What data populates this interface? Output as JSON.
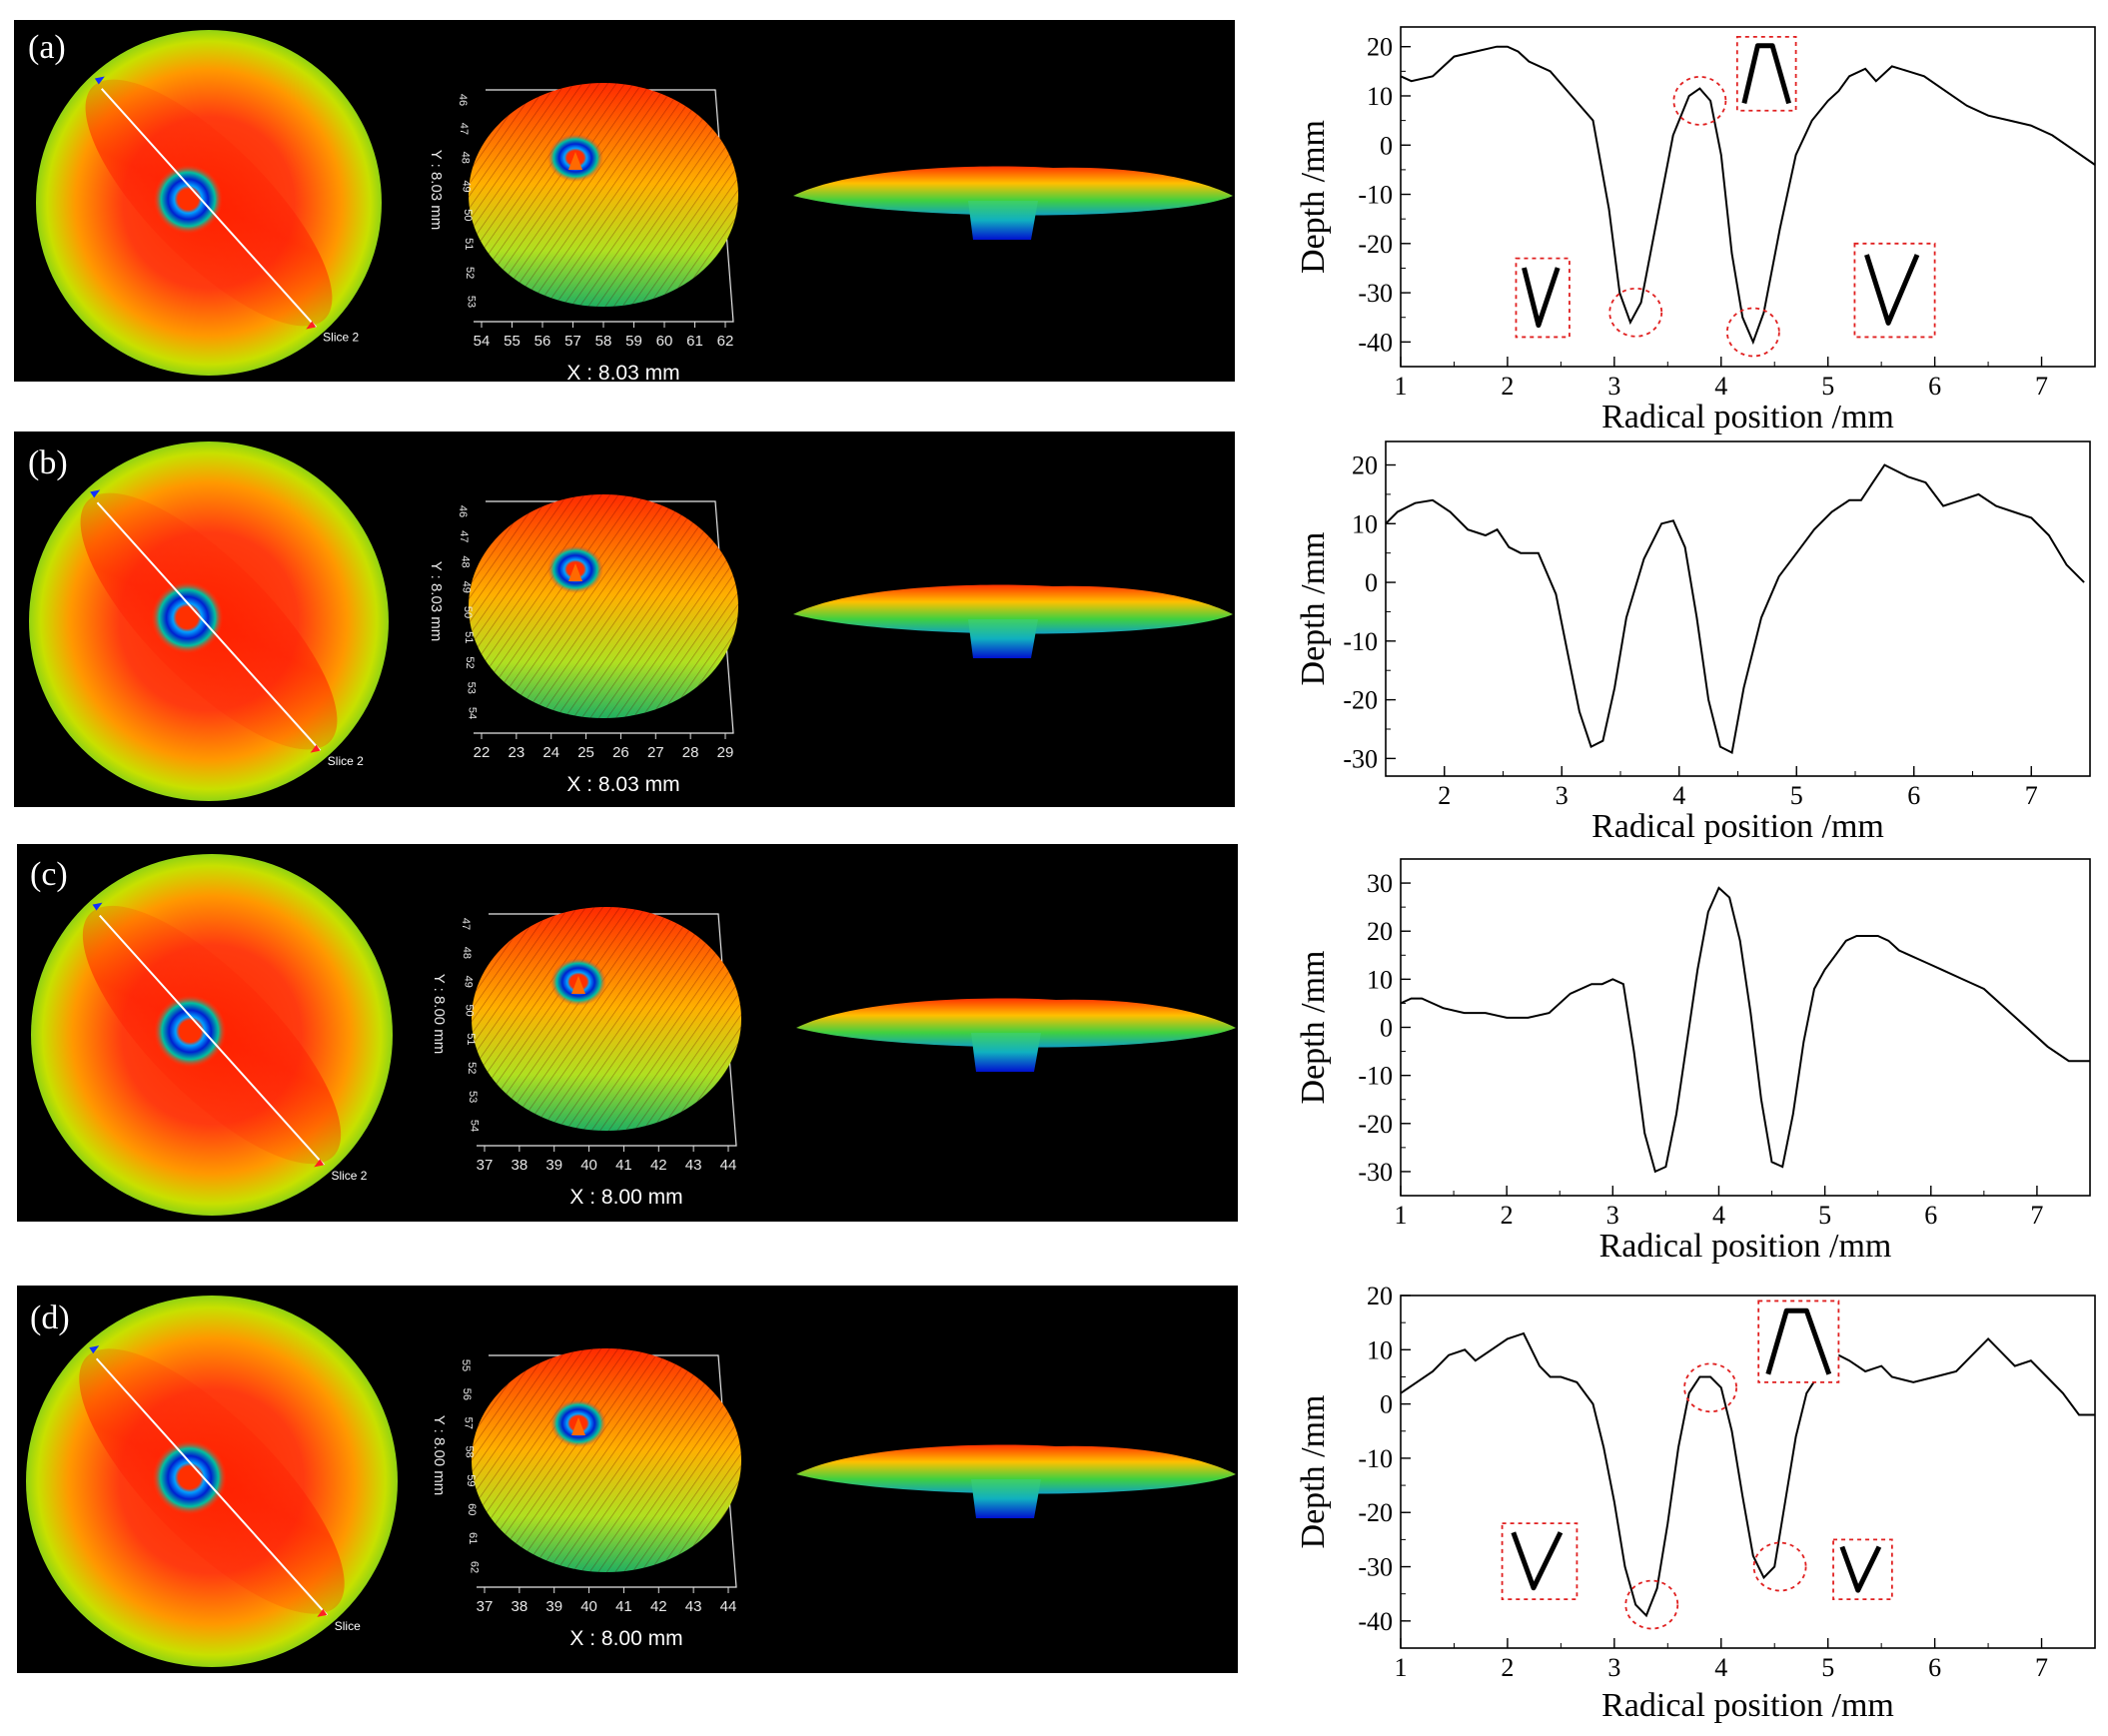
{
  "figure": {
    "panel_labels": [
      "(a)",
      "(b)",
      "(c)",
      "(d)"
    ],
    "colors": {
      "line": "#000000",
      "highlight": "#e02020",
      "scan_bg": "#000000"
    }
  },
  "scans": [
    {
      "x_ticks": [
        "54",
        "55",
        "56",
        "57",
        "58",
        "59",
        "60",
        "61",
        "62"
      ],
      "y_ticks": [
        "46",
        "47",
        "48",
        "49",
        "50",
        "51",
        "52",
        "53"
      ],
      "y_label": "Y : 8.03 mm",
      "x_label": "X : 8.03 mm",
      "slice_label": "Slice 2"
    },
    {
      "x_ticks": [
        "22",
        "23",
        "24",
        "25",
        "26",
        "27",
        "28",
        "29"
      ],
      "y_ticks": [
        "46",
        "47",
        "48",
        "49",
        "50",
        "51",
        "52",
        "53",
        "54"
      ],
      "y_label": "Y : 8.03 mm",
      "x_label": "X : 8.03 mm",
      "slice_label": "Slice 2"
    },
    {
      "x_ticks": [
        "37",
        "38",
        "39",
        "40",
        "41",
        "42",
        "43",
        "44"
      ],
      "y_ticks": [
        "47",
        "48",
        "49",
        "50",
        "51",
        "52",
        "53",
        "54"
      ],
      "y_label": "Y : 8.00 mm",
      "x_label": "X : 8.00 mm",
      "slice_label": "Slice 2"
    },
    {
      "x_ticks": [
        "37",
        "38",
        "39",
        "40",
        "41",
        "42",
        "43",
        "44"
      ],
      "y_ticks": [
        "55",
        "56",
        "57",
        "58",
        "59",
        "60",
        "61",
        "62"
      ],
      "y_label": "Y : 8.00 mm",
      "x_label": "X : 8.00 mm",
      "slice_label": "Slice"
    }
  ],
  "chart_data": [
    {
      "type": "line",
      "panel": "(a)",
      "xlabel": "Radical position /mm",
      "ylabel": "Depth /mm",
      "xlim": [
        1,
        7.5
      ],
      "ylim": [
        -45,
        24
      ],
      "xticks": [
        1,
        2,
        3,
        4,
        5,
        6,
        7
      ],
      "yticks": [
        20,
        10,
        0,
        -10,
        -20,
        -30,
        -40
      ],
      "x": [
        1.0,
        1.1,
        1.3,
        1.5,
        1.7,
        1.9,
        2.0,
        2.1,
        2.2,
        2.4,
        2.6,
        2.8,
        2.95,
        3.05,
        3.15,
        3.25,
        3.4,
        3.55,
        3.7,
        3.8,
        3.9,
        4.0,
        4.1,
        4.2,
        4.3,
        4.4,
        4.55,
        4.7,
        4.85,
        5.0,
        5.1,
        5.2,
        5.35,
        5.45,
        5.6,
        5.75,
        5.9,
        6.1,
        6.3,
        6.5,
        6.7,
        6.9,
        7.1,
        7.3,
        7.5
      ],
      "y": [
        14,
        13,
        14,
        18,
        19,
        20,
        20,
        19,
        17,
        15,
        10,
        5,
        -13,
        -30,
        -36,
        -32,
        -15,
        2,
        10,
        11.5,
        9,
        -2,
        -22,
        -35,
        -40,
        -34,
        -17,
        -2,
        5,
        9,
        11,
        14,
        15.5,
        13,
        16,
        15,
        14,
        11,
        8,
        6,
        5,
        4,
        2,
        -1,
        -4
      ],
      "annotations": [
        {
          "kind": "circle",
          "x": 3.2,
          "y": -34
        },
        {
          "kind": "circle",
          "x": 3.8,
          "y": 9
        },
        {
          "kind": "circle",
          "x": 4.3,
          "y": -38
        },
        {
          "kind": "inset",
          "shape": "v",
          "x0": 2.08,
          "x1": 2.58,
          "y0": -23,
          "y1": -39
        },
        {
          "kind": "inset",
          "shape": "peak",
          "x0": 4.15,
          "x1": 4.7,
          "y0": 22,
          "y1": 7
        },
        {
          "kind": "inset",
          "shape": "v",
          "x0": 5.25,
          "x1": 6.0,
          "y0": -20,
          "y1": -39
        }
      ]
    },
    {
      "type": "line",
      "panel": "(b)",
      "xlabel": "Radical position /mm",
      "ylabel": "Depth /mm",
      "xlim": [
        1.5,
        7.5
      ],
      "ylim": [
        -33,
        24
      ],
      "xticks": [
        2,
        3,
        4,
        5,
        6,
        7
      ],
      "yticks": [
        20,
        10,
        0,
        -10,
        -20,
        -30
      ],
      "x": [
        1.5,
        1.6,
        1.75,
        1.9,
        2.05,
        2.2,
        2.35,
        2.45,
        2.55,
        2.65,
        2.8,
        2.95,
        3.05,
        3.15,
        3.25,
        3.35,
        3.45,
        3.55,
        3.7,
        3.85,
        3.95,
        4.05,
        4.15,
        4.25,
        4.35,
        4.45,
        4.55,
        4.7,
        4.85,
        5.0,
        5.15,
        5.3,
        5.45,
        5.55,
        5.65,
        5.75,
        5.85,
        5.95,
        6.1,
        6.25,
        6.4,
        6.55,
        6.7,
        6.85,
        7.0,
        7.15,
        7.3,
        7.45
      ],
      "y": [
        10,
        12,
        13.5,
        14,
        12,
        9,
        8,
        9,
        6,
        5,
        5,
        -2,
        -12,
        -22,
        -28,
        -27,
        -18,
        -6,
        4,
        10,
        10.5,
        6,
        -6,
        -20,
        -28,
        -29,
        -18,
        -6,
        1,
        5,
        9,
        12,
        14,
        14,
        17,
        20,
        19,
        18,
        17,
        13,
        14,
        15,
        13,
        12,
        11,
        8,
        3,
        0
      ],
      "annotations": []
    },
    {
      "type": "line",
      "panel": "(c)",
      "xlabel": "Radical position /mm",
      "ylabel": "Depth /mm",
      "xlim": [
        1,
        7.5
      ],
      "ylim": [
        -35,
        35
      ],
      "xticks": [
        1,
        2,
        3,
        4,
        5,
        6,
        7
      ],
      "yticks": [
        30,
        20,
        10,
        0,
        -10,
        -20,
        -30
      ],
      "x": [
        1.0,
        1.1,
        1.2,
        1.3,
        1.4,
        1.6,
        1.8,
        2.0,
        2.2,
        2.4,
        2.6,
        2.8,
        2.9,
        3.0,
        3.1,
        3.2,
        3.3,
        3.4,
        3.5,
        3.6,
        3.7,
        3.8,
        3.9,
        4.0,
        4.1,
        4.2,
        4.3,
        4.4,
        4.5,
        4.6,
        4.7,
        4.8,
        4.9,
        5.0,
        5.1,
        5.2,
        5.3,
        5.4,
        5.5,
        5.6,
        5.7,
        5.8,
        5.9,
        6.0,
        6.1,
        6.3,
        6.5,
        6.7,
        6.9,
        7.1,
        7.3,
        7.5
      ],
      "y": [
        5,
        6,
        6,
        5,
        4,
        3,
        3,
        2,
        2,
        3,
        7,
        9,
        9,
        10,
        9,
        -5,
        -22,
        -30,
        -29,
        -18,
        -3,
        12,
        24,
        29,
        27,
        18,
        3,
        -15,
        -28,
        -29,
        -18,
        -3,
        8,
        12,
        15,
        18,
        19,
        19,
        19,
        18,
        16,
        15,
        14,
        13,
        12,
        10,
        8,
        4,
        0,
        -4,
        -7,
        -7
      ],
      "annotations": []
    },
    {
      "type": "line",
      "panel": "(d)",
      "xlabel": "Radical position /mm",
      "ylabel": "Depth /mm",
      "xlim": [
        1,
        7.5
      ],
      "ylim": [
        -45,
        20
      ],
      "xticks": [
        1,
        2,
        3,
        4,
        5,
        6,
        7
      ],
      "yticks": [
        20,
        10,
        0,
        -10,
        -20,
        -30,
        -40
      ],
      "x": [
        1.0,
        1.15,
        1.3,
        1.45,
        1.6,
        1.7,
        1.85,
        2.0,
        2.15,
        2.3,
        2.4,
        2.5,
        2.65,
        2.8,
        2.9,
        3.0,
        3.1,
        3.2,
        3.3,
        3.4,
        3.5,
        3.6,
        3.7,
        3.8,
        3.9,
        4.0,
        4.1,
        4.2,
        4.3,
        4.4,
        4.5,
        4.6,
        4.7,
        4.8,
        4.9,
        5.0,
        5.1,
        5.2,
        5.35,
        5.5,
        5.6,
        5.8,
        6.0,
        6.2,
        6.35,
        6.5,
        6.6,
        6.75,
        6.9,
        7.05,
        7.2,
        7.35,
        7.5
      ],
      "y": [
        2,
        4,
        6,
        9,
        10,
        8,
        10,
        12,
        13,
        7,
        5,
        5,
        4,
        0,
        -8,
        -18,
        -30,
        -37,
        -39,
        -34,
        -22,
        -8,
        2,
        5,
        5,
        3,
        -5,
        -17,
        -28,
        -32,
        -30,
        -18,
        -6,
        2,
        5,
        8,
        9,
        8,
        6,
        7,
        5,
        4,
        5,
        6,
        9,
        12,
        10,
        7,
        8,
        5,
        2,
        -2,
        -2
      ],
      "annotations": [
        {
          "kind": "circle",
          "x": 3.35,
          "y": -37
        },
        {
          "kind": "circle",
          "x": 3.9,
          "y": 3
        },
        {
          "kind": "circle",
          "x": 4.55,
          "y": -30
        },
        {
          "kind": "inset",
          "shape": "v",
          "x0": 1.95,
          "x1": 2.65,
          "y0": -22,
          "y1": -36
        },
        {
          "kind": "inset",
          "shape": "peak",
          "x0": 4.35,
          "x1": 5.1,
          "y0": 19,
          "y1": 4
        },
        {
          "kind": "inset",
          "shape": "v",
          "x0": 5.05,
          "x1": 5.6,
          "y0": -25,
          "y1": -36
        }
      ]
    }
  ]
}
